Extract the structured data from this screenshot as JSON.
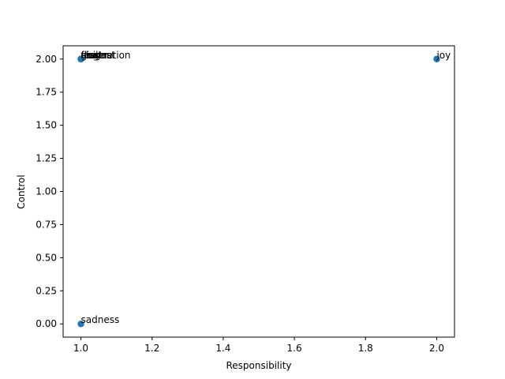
{
  "chart_data": {
    "type": "scatter",
    "xlabel": "Responsibility",
    "ylabel": "Control",
    "xlim": [
      0.95,
      2.05
    ],
    "ylim": [
      -0.1,
      2.1
    ],
    "grid": false,
    "marker_color": "#1f77b4",
    "x_ticks": [
      "1.0",
      "1.2",
      "1.4",
      "1.6",
      "1.8",
      "2.0"
    ],
    "y_ticks": [
      "0.00",
      "0.25",
      "0.50",
      "0.75",
      "1.00",
      "1.25",
      "1.50",
      "1.75",
      "2.00"
    ],
    "points": [
      {
        "label": "frustration",
        "x": 1.0,
        "y": 2.0
      },
      {
        "label": "anger",
        "x": 1.0,
        "y": 2.0
      },
      {
        "label": "disgust",
        "x": 1.0,
        "y": 2.0
      },
      {
        "label": "shame",
        "x": 1.0,
        "y": 2.0
      },
      {
        "label": "guilt",
        "x": 1.0,
        "y": 2.0
      },
      {
        "label": "fear",
        "x": 1.0,
        "y": 2.0
      },
      {
        "label": "joy",
        "x": 2.0,
        "y": 2.0
      },
      {
        "label": "sadness",
        "x": 1.0,
        "y": 0.0
      }
    ]
  }
}
